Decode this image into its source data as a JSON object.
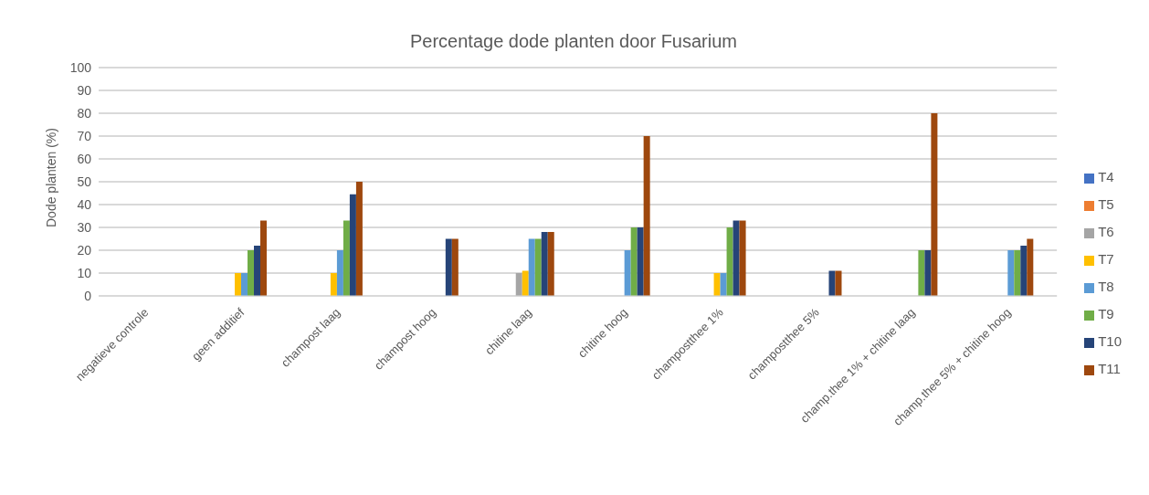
{
  "chart_data": {
    "type": "bar",
    "title": "Percentage dode planten door Fusarium",
    "ylabel": "Dode planten (%)",
    "categories": [
      "negatieve controle",
      "geen additief",
      "champost laag",
      "champost hoog",
      "chitine laag",
      "chitine hoog",
      "champostthee 1%",
      "champostthee 5%",
      "champ.thee 1% + chitine laag",
      "champ.thee 5% + chitine hoog"
    ],
    "series": [
      {
        "name": "T4",
        "color": "#4472c4",
        "values": [
          0,
          0,
          0,
          0,
          0,
          0,
          0,
          0,
          0,
          0
        ]
      },
      {
        "name": "T5",
        "color": "#ed7d31",
        "values": [
          0,
          0,
          0,
          0,
          0,
          0,
          0,
          0,
          0,
          0
        ]
      },
      {
        "name": "T6",
        "color": "#a5a5a5",
        "values": [
          0,
          0,
          0,
          0,
          10,
          0,
          0,
          0,
          0,
          0
        ]
      },
      {
        "name": "T7",
        "color": "#ffc000",
        "values": [
          0,
          10,
          10,
          0,
          11,
          0,
          10,
          0,
          0,
          0
        ]
      },
      {
        "name": "T8",
        "color": "#5b9bd5",
        "values": [
          0,
          10,
          20,
          0,
          25,
          20,
          10,
          0,
          0,
          20
        ]
      },
      {
        "name": "T9",
        "color": "#70ad47",
        "values": [
          0,
          20,
          33,
          0,
          25,
          30,
          30,
          0,
          20,
          20
        ]
      },
      {
        "name": "T10",
        "color": "#264478",
        "values": [
          0,
          22,
          44.5,
          25,
          28,
          30,
          33,
          11,
          20,
          22
        ]
      },
      {
        "name": "T11",
        "color": "#9e480e",
        "values": [
          0,
          33,
          50,
          25,
          28,
          70,
          33,
          11,
          80,
          25
        ]
      }
    ],
    "ylim": [
      0,
      100
    ],
    "yticks": [
      0,
      10,
      20,
      30,
      40,
      50,
      60,
      70,
      80,
      90,
      100
    ],
    "grid": "y",
    "legend": "right"
  }
}
